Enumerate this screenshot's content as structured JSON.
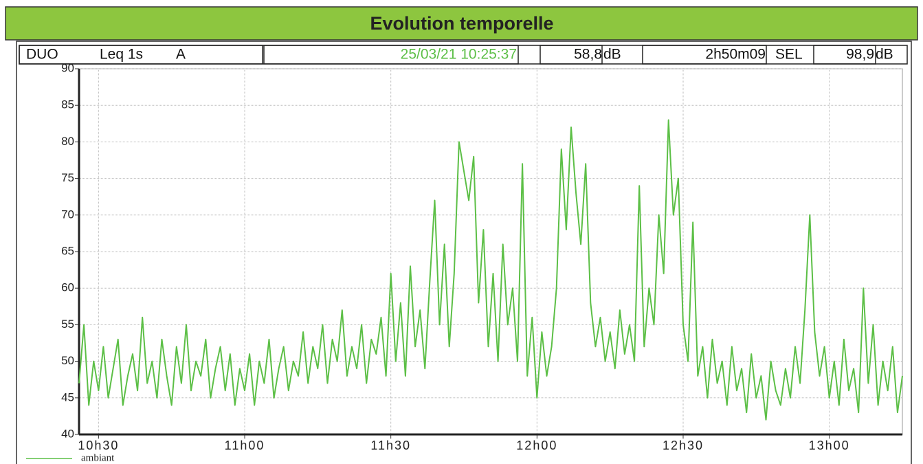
{
  "header": {
    "title": "Evolution temporelle"
  },
  "info": {
    "source": "DUO",
    "mode": "Leq 1s",
    "weighting": "A",
    "datetime": "25/03/21 10:25:37",
    "level": "58,8",
    "level_unit": "dB",
    "duration": "2h50m09",
    "sel_label": "SEL",
    "sel": "98,9",
    "sel_unit": "dB"
  },
  "chart_data": {
    "type": "line",
    "x": [
      "10h26",
      "10h27",
      "10h28",
      "10h29",
      "10h30",
      "10h31",
      "10h32",
      "10h33",
      "10h34",
      "10h35",
      "10h36",
      "10h37",
      "10h38",
      "10h39",
      "10h40",
      "10h41",
      "10h42",
      "10h43",
      "10h44",
      "10h45",
      "10h46",
      "10h47",
      "10h48",
      "10h49",
      "10h50",
      "10h51",
      "10h52",
      "10h53",
      "10h54",
      "10h55",
      "10h56",
      "10h57",
      "10h58",
      "10h59",
      "11h00",
      "11h01",
      "11h02",
      "11h03",
      "11h04",
      "11h05",
      "11h06",
      "11h07",
      "11h08",
      "11h09",
      "11h10",
      "11h11",
      "11h12",
      "11h13",
      "11h14",
      "11h15",
      "11h16",
      "11h17",
      "11h18",
      "11h19",
      "11h20",
      "11h21",
      "11h22",
      "11h23",
      "11h24",
      "11h25",
      "11h26",
      "11h27",
      "11h28",
      "11h29",
      "11h30",
      "11h31",
      "11h32",
      "11h33",
      "11h34",
      "11h35",
      "11h36",
      "11h37",
      "11h38",
      "11h39",
      "11h40",
      "11h41",
      "11h42",
      "11h43",
      "11h44",
      "11h45",
      "11h46",
      "11h47",
      "11h48",
      "11h49",
      "11h50",
      "11h51",
      "11h52",
      "11h53",
      "11h54",
      "11h55",
      "11h56",
      "11h57",
      "11h58",
      "11h59",
      "12h00",
      "12h01",
      "12h02",
      "12h03",
      "12h04",
      "12h05",
      "12h06",
      "12h07",
      "12h08",
      "12h09",
      "12h10",
      "12h11",
      "12h12",
      "12h13",
      "12h14",
      "12h15",
      "12h16",
      "12h17",
      "12h18",
      "12h19",
      "12h20",
      "12h21",
      "12h22",
      "12h23",
      "12h24",
      "12h25",
      "12h26",
      "12h27",
      "12h28",
      "12h29",
      "12h30",
      "12h31",
      "12h32",
      "12h33",
      "12h34",
      "12h35",
      "12h36",
      "12h37",
      "12h38",
      "12h39",
      "12h40",
      "12h41",
      "12h42",
      "12h43",
      "12h44",
      "12h45",
      "12h46",
      "12h47",
      "12h48",
      "12h49",
      "12h50",
      "12h51",
      "12h52",
      "12h53",
      "12h54",
      "12h55",
      "12h56",
      "12h57",
      "12h58",
      "12h59",
      "13h00",
      "13h01",
      "13h02",
      "13h03",
      "13h04",
      "13h05",
      "13h06",
      "13h07",
      "13h08",
      "13h09",
      "13h10",
      "13h11",
      "13h12",
      "13h13",
      "13h14",
      "13h15"
    ],
    "series": [
      {
        "name": "ambiant",
        "color": "#5cbf46",
        "values": [
          47,
          55,
          44,
          50,
          46,
          52,
          45,
          49,
          53,
          44,
          48,
          51,
          46,
          56,
          47,
          50,
          45,
          53,
          48,
          44,
          52,
          47,
          55,
          46,
          50,
          48,
          53,
          45,
          49,
          52,
          46,
          51,
          44,
          49,
          46,
          51,
          44,
          50,
          47,
          53,
          45,
          49,
          52,
          46,
          50,
          48,
          54,
          47,
          52,
          49,
          55,
          47,
          53,
          50,
          57,
          48,
          52,
          49,
          55,
          47,
          53,
          51,
          56,
          48,
          62,
          50,
          58,
          48,
          63,
          52,
          57,
          49,
          61,
          72,
          55,
          66,
          52,
          62,
          80,
          76,
          72,
          78,
          58,
          68,
          52,
          62,
          50,
          66,
          55,
          60,
          50,
          77,
          48,
          56,
          45,
          54,
          48,
          52,
          60,
          79,
          68,
          82,
          73,
          66,
          77,
          58,
          52,
          56,
          50,
          54,
          49,
          57,
          51,
          55,
          50,
          74,
          52,
          60,
          55,
          70,
          62,
          83,
          70,
          75,
          55,
          50,
          69,
          48,
          52,
          45,
          53,
          47,
          50,
          44,
          52,
          46,
          49,
          43,
          51,
          45,
          48,
          42,
          50,
          46,
          44,
          49,
          45,
          52,
          47,
          57,
          70,
          54,
          48,
          52,
          45,
          50,
          44,
          53,
          46,
          49,
          43,
          60,
          47,
          55,
          44,
          50,
          46,
          52,
          43,
          48
        ]
      }
    ],
    "xlim": [
      "10h26",
      "13h15"
    ],
    "xticks": [
      "10h30",
      "11h00",
      "11h30",
      "12h00",
      "12h30",
      "13h00"
    ],
    "ylim": [
      40,
      90
    ],
    "yticks": [
      40,
      45,
      50,
      55,
      60,
      65,
      70,
      75,
      80,
      85,
      90
    ],
    "grid": true
  }
}
